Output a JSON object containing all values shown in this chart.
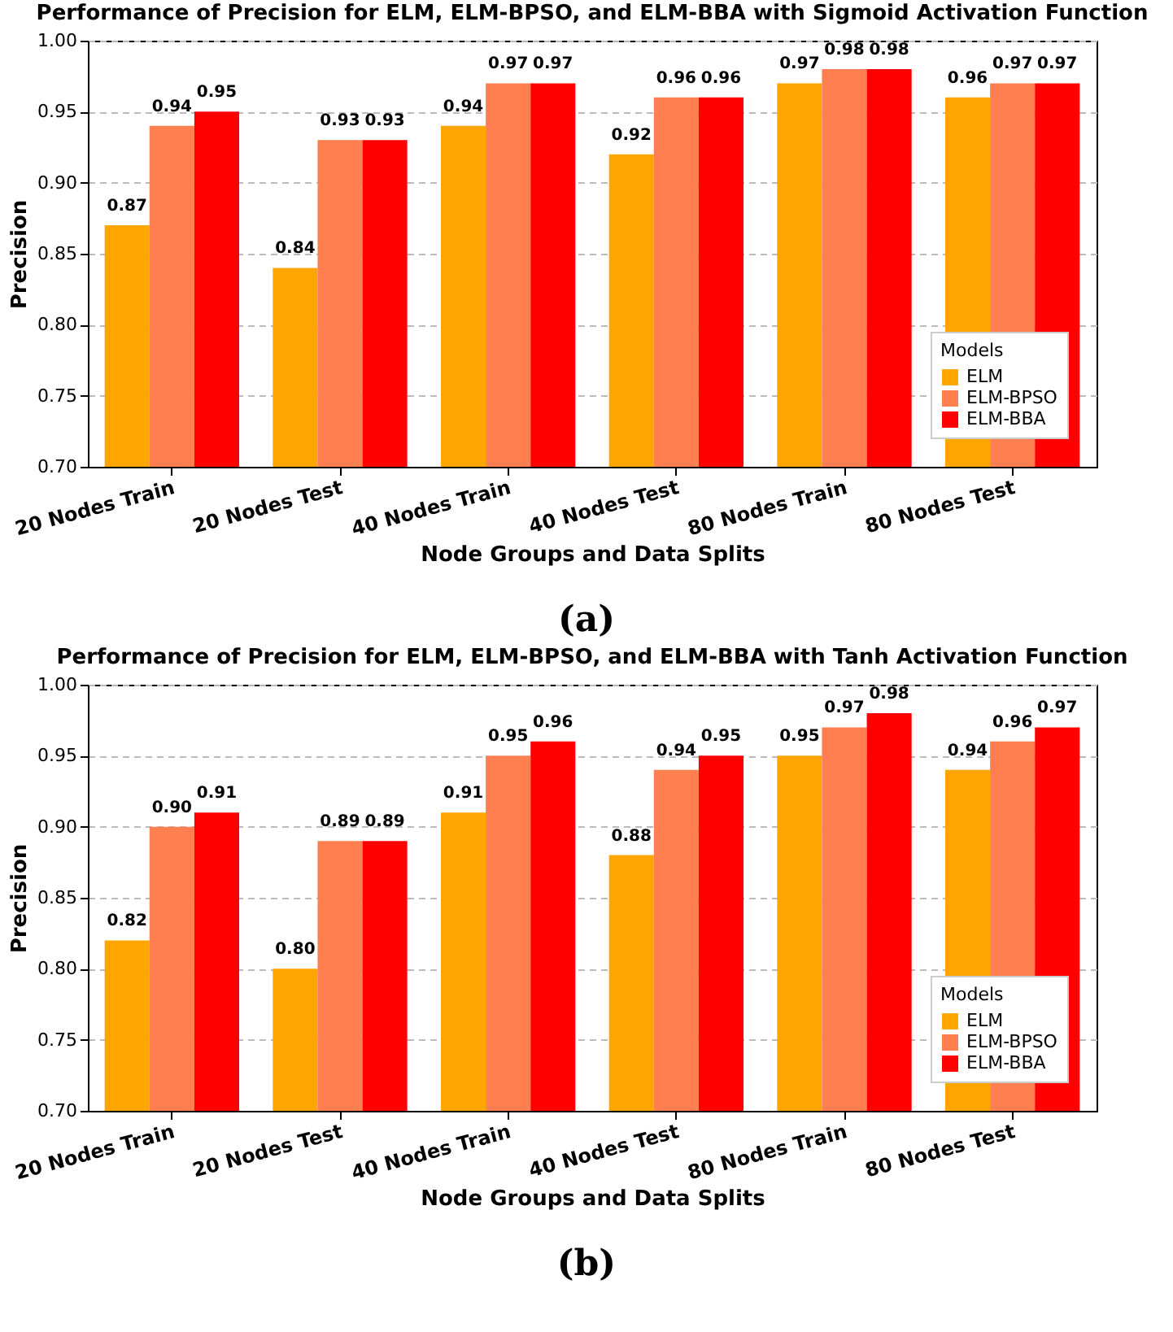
{
  "chart_data": [
    {
      "type": "bar",
      "title": "Performance of Precision for ELM, ELM-BPSO, and ELM-BBA with Sigmoid Activation Function",
      "xlabel": "Node Groups and Data Splits",
      "ylabel": "Precision",
      "legend_title": "Models",
      "legend": "bottom right",
      "grid": "y",
      "annotations": [
        "(a)"
      ],
      "categories": [
        "20 Nodes Train",
        "20 Nodes Test",
        "40 Nodes Train",
        "40 Nodes Test",
        "80 Nodes Train",
        "80 Nodes Test"
      ],
      "ylim": [
        0.7,
        1.0
      ],
      "yticks": [
        {
          "value": 0.7,
          "label": "0.70"
        },
        {
          "value": 0.75,
          "label": "0.75"
        },
        {
          "value": 0.8,
          "label": "0.80"
        },
        {
          "value": 0.85,
          "label": "0.85"
        },
        {
          "value": 0.9,
          "label": "0.90"
        },
        {
          "value": 0.95,
          "label": "0.95"
        },
        {
          "value": 1.0,
          "label": "1.00"
        }
      ],
      "series": [
        {
          "name": "ELM",
          "color": "#ffa500",
          "values": [
            0.87,
            0.84,
            0.94,
            0.92,
            0.97,
            0.96
          ],
          "value_labels": [
            "0.87",
            "0.84",
            "0.94",
            "0.92",
            "0.97",
            "0.96"
          ]
        },
        {
          "name": "ELM-BPSO",
          "color": "#ff7f50",
          "values": [
            0.94,
            0.93,
            0.97,
            0.96,
            0.98,
            0.97
          ],
          "value_labels": [
            "0.94",
            "0.93",
            "0.97",
            "0.96",
            "0.98",
            "0.97"
          ]
        },
        {
          "name": "ELM-BBA",
          "color": "#ff0000",
          "values": [
            0.95,
            0.93,
            0.97,
            0.96,
            0.98,
            0.97
          ],
          "value_labels": [
            "0.95",
            "0.93",
            "0.97",
            "0.96",
            "0.98",
            "0.97"
          ]
        }
      ]
    },
    {
      "type": "bar",
      "title": "Performance of Precision for ELM, ELM-BPSO, and ELM-BBA with Tanh Activation Function",
      "xlabel": "Node Groups and Data Splits",
      "ylabel": "Precision",
      "legend_title": "Models",
      "legend": "bottom right",
      "grid": "y",
      "annotations": [
        "(b)"
      ],
      "categories": [
        "20 Nodes Train",
        "20 Nodes Test",
        "40 Nodes Train",
        "40 Nodes Test",
        "80 Nodes Train",
        "80 Nodes Test"
      ],
      "ylim": [
        0.7,
        1.0
      ],
      "yticks": [
        {
          "value": 0.7,
          "label": "0.70"
        },
        {
          "value": 0.75,
          "label": "0.75"
        },
        {
          "value": 0.8,
          "label": "0.80"
        },
        {
          "value": 0.85,
          "label": "0.85"
        },
        {
          "value": 0.9,
          "label": "0.90"
        },
        {
          "value": 0.95,
          "label": "0.95"
        },
        {
          "value": 1.0,
          "label": "1.00"
        }
      ],
      "series": [
        {
          "name": "ELM",
          "color": "#ffa500",
          "values": [
            0.82,
            0.8,
            0.91,
            0.88,
            0.95,
            0.94
          ],
          "value_labels": [
            "0.82",
            "0.80",
            "0.91",
            "0.88",
            "0.95",
            "0.94"
          ]
        },
        {
          "name": "ELM-BPSO",
          "color": "#ff7f50",
          "values": [
            0.9,
            0.89,
            0.95,
            0.94,
            0.97,
            0.96
          ],
          "value_labels": [
            "0.90",
            "0.89",
            "0.95",
            "0.94",
            "0.97",
            "0.96"
          ]
        },
        {
          "name": "ELM-BBA",
          "color": "#ff0000",
          "values": [
            0.91,
            0.89,
            0.96,
            0.95,
            0.98,
            0.97
          ],
          "value_labels": [
            "0.91",
            "0.89",
            "0.96",
            "0.95",
            "0.98",
            "0.97"
          ]
        }
      ]
    }
  ]
}
